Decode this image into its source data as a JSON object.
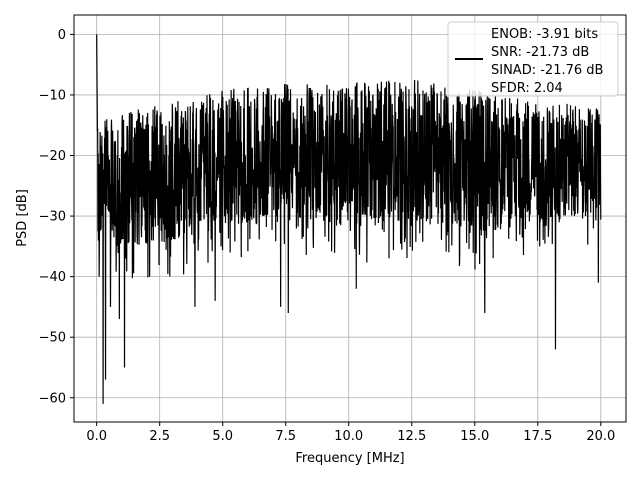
{
  "chart_data": {
    "type": "line",
    "title": "",
    "xlabel": "Frequency [MHz]",
    "ylabel": "PSD [dB]",
    "xlim": [
      -0.9,
      21.0
    ],
    "ylim": [
      -64.0,
      3.2
    ],
    "xticks": [
      0.0,
      2.5,
      5.0,
      7.5,
      10.0,
      12.5,
      15.0,
      17.5,
      20.0
    ],
    "xtick_labels": [
      "0.0",
      "2.5",
      "5.0",
      "7.5",
      "10.0",
      "12.5",
      "15.0",
      "17.5",
      "20.0"
    ],
    "yticks": [
      0,
      -10,
      -20,
      -30,
      -40,
      -50,
      -60
    ],
    "ytick_labels": [
      "0",
      "−10",
      "−20",
      "−30",
      "−40",
      "−50",
      "−60"
    ],
    "grid": true,
    "legend_position": "top-right",
    "series": [
      {
        "name": "ENOB: -3.91 bits\nSNR: -21.73 dB\nSINAD: -21.76 dB\nSFDR: 2.04",
        "color": "#000000",
        "style": "noise-psd",
        "x_range": [
          0.0,
          20.0
        ],
        "num_points": 2048,
        "peak_at_zero": 0.0,
        "mean_level": -19,
        "upper_envelope": [
          [
            0.0,
            -14
          ],
          [
            1.0,
            -13
          ],
          [
            5.0,
            -9
          ],
          [
            7.5,
            -8
          ],
          [
            10.0,
            -8
          ],
          [
            12.5,
            -7
          ],
          [
            15.0,
            -9
          ],
          [
            17.5,
            -11
          ],
          [
            20.0,
            -12
          ]
        ],
        "lower_envelope": [
          [
            0.0,
            -35
          ],
          [
            2.5,
            -35
          ],
          [
            5.0,
            -32
          ],
          [
            7.5,
            -30
          ],
          [
            10.0,
            -32
          ],
          [
            12.5,
            -31
          ],
          [
            15.0,
            -33
          ],
          [
            17.5,
            -32
          ],
          [
            20.0,
            -30
          ]
        ],
        "notable_dips": [
          {
            "x": 0.25,
            "y": -61
          },
          {
            "x": 0.35,
            "y": -57
          },
          {
            "x": 0.1,
            "y": -40
          },
          {
            "x": 0.55,
            "y": -45
          },
          {
            "x": 0.9,
            "y": -47
          },
          {
            "x": 1.1,
            "y": -55
          },
          {
            "x": 2.1,
            "y": -40
          },
          {
            "x": 3.9,
            "y": -45
          },
          {
            "x": 4.7,
            "y": -44
          },
          {
            "x": 7.3,
            "y": -45
          },
          {
            "x": 7.6,
            "y": -46
          },
          {
            "x": 10.3,
            "y": -42
          },
          {
            "x": 15.4,
            "y": -46
          },
          {
            "x": 18.2,
            "y": -52
          },
          {
            "x": 19.9,
            "y": -41
          }
        ]
      }
    ]
  }
}
